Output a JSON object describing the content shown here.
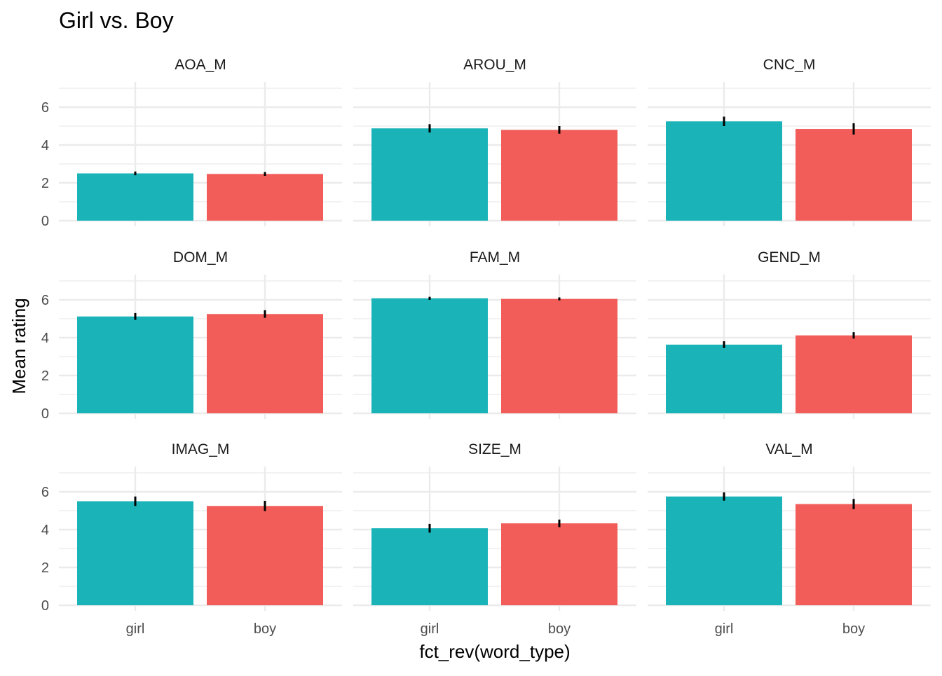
{
  "chart_data": {
    "type": "bar",
    "title": "Girl vs. Boy",
    "xlabel": "fct_rev(word_type)",
    "ylabel": "Mean rating",
    "categories": [
      "girl",
      "boy"
    ],
    "ylim": [
      0,
      7.2
    ],
    "yticks": [
      0,
      2,
      4,
      6
    ],
    "colors": {
      "girl": "#19B3B8",
      "boy": "#F25D5A",
      "error_bar": "#000000",
      "grid": "#EBEBEB"
    },
    "facets": [
      {
        "name": "AOA_M",
        "values": [
          2.5,
          2.47
        ],
        "errors": [
          0.1,
          0.1
        ]
      },
      {
        "name": "AROU_M",
        "values": [
          4.88,
          4.8
        ],
        "errors": [
          0.22,
          0.2
        ]
      },
      {
        "name": "CNC_M",
        "values": [
          5.25,
          4.85
        ],
        "errors": [
          0.25,
          0.3
        ]
      },
      {
        "name": "DOM_M",
        "values": [
          5.12,
          5.25
        ],
        "errors": [
          0.18,
          0.2
        ]
      },
      {
        "name": "FAM_M",
        "values": [
          6.08,
          6.05
        ],
        "errors": [
          0.08,
          0.08
        ]
      },
      {
        "name": "GEND_M",
        "values": [
          3.63,
          4.12
        ],
        "errors": [
          0.18,
          0.17
        ]
      },
      {
        "name": "IMAG_M",
        "values": [
          5.5,
          5.25
        ],
        "errors": [
          0.25,
          0.27
        ]
      },
      {
        "name": "SIZE_M",
        "values": [
          4.07,
          4.33
        ],
        "errors": [
          0.23,
          0.2
        ]
      },
      {
        "name": "VAL_M",
        "values": [
          5.75,
          5.35
        ],
        "errors": [
          0.22,
          0.27
        ]
      }
    ]
  }
}
